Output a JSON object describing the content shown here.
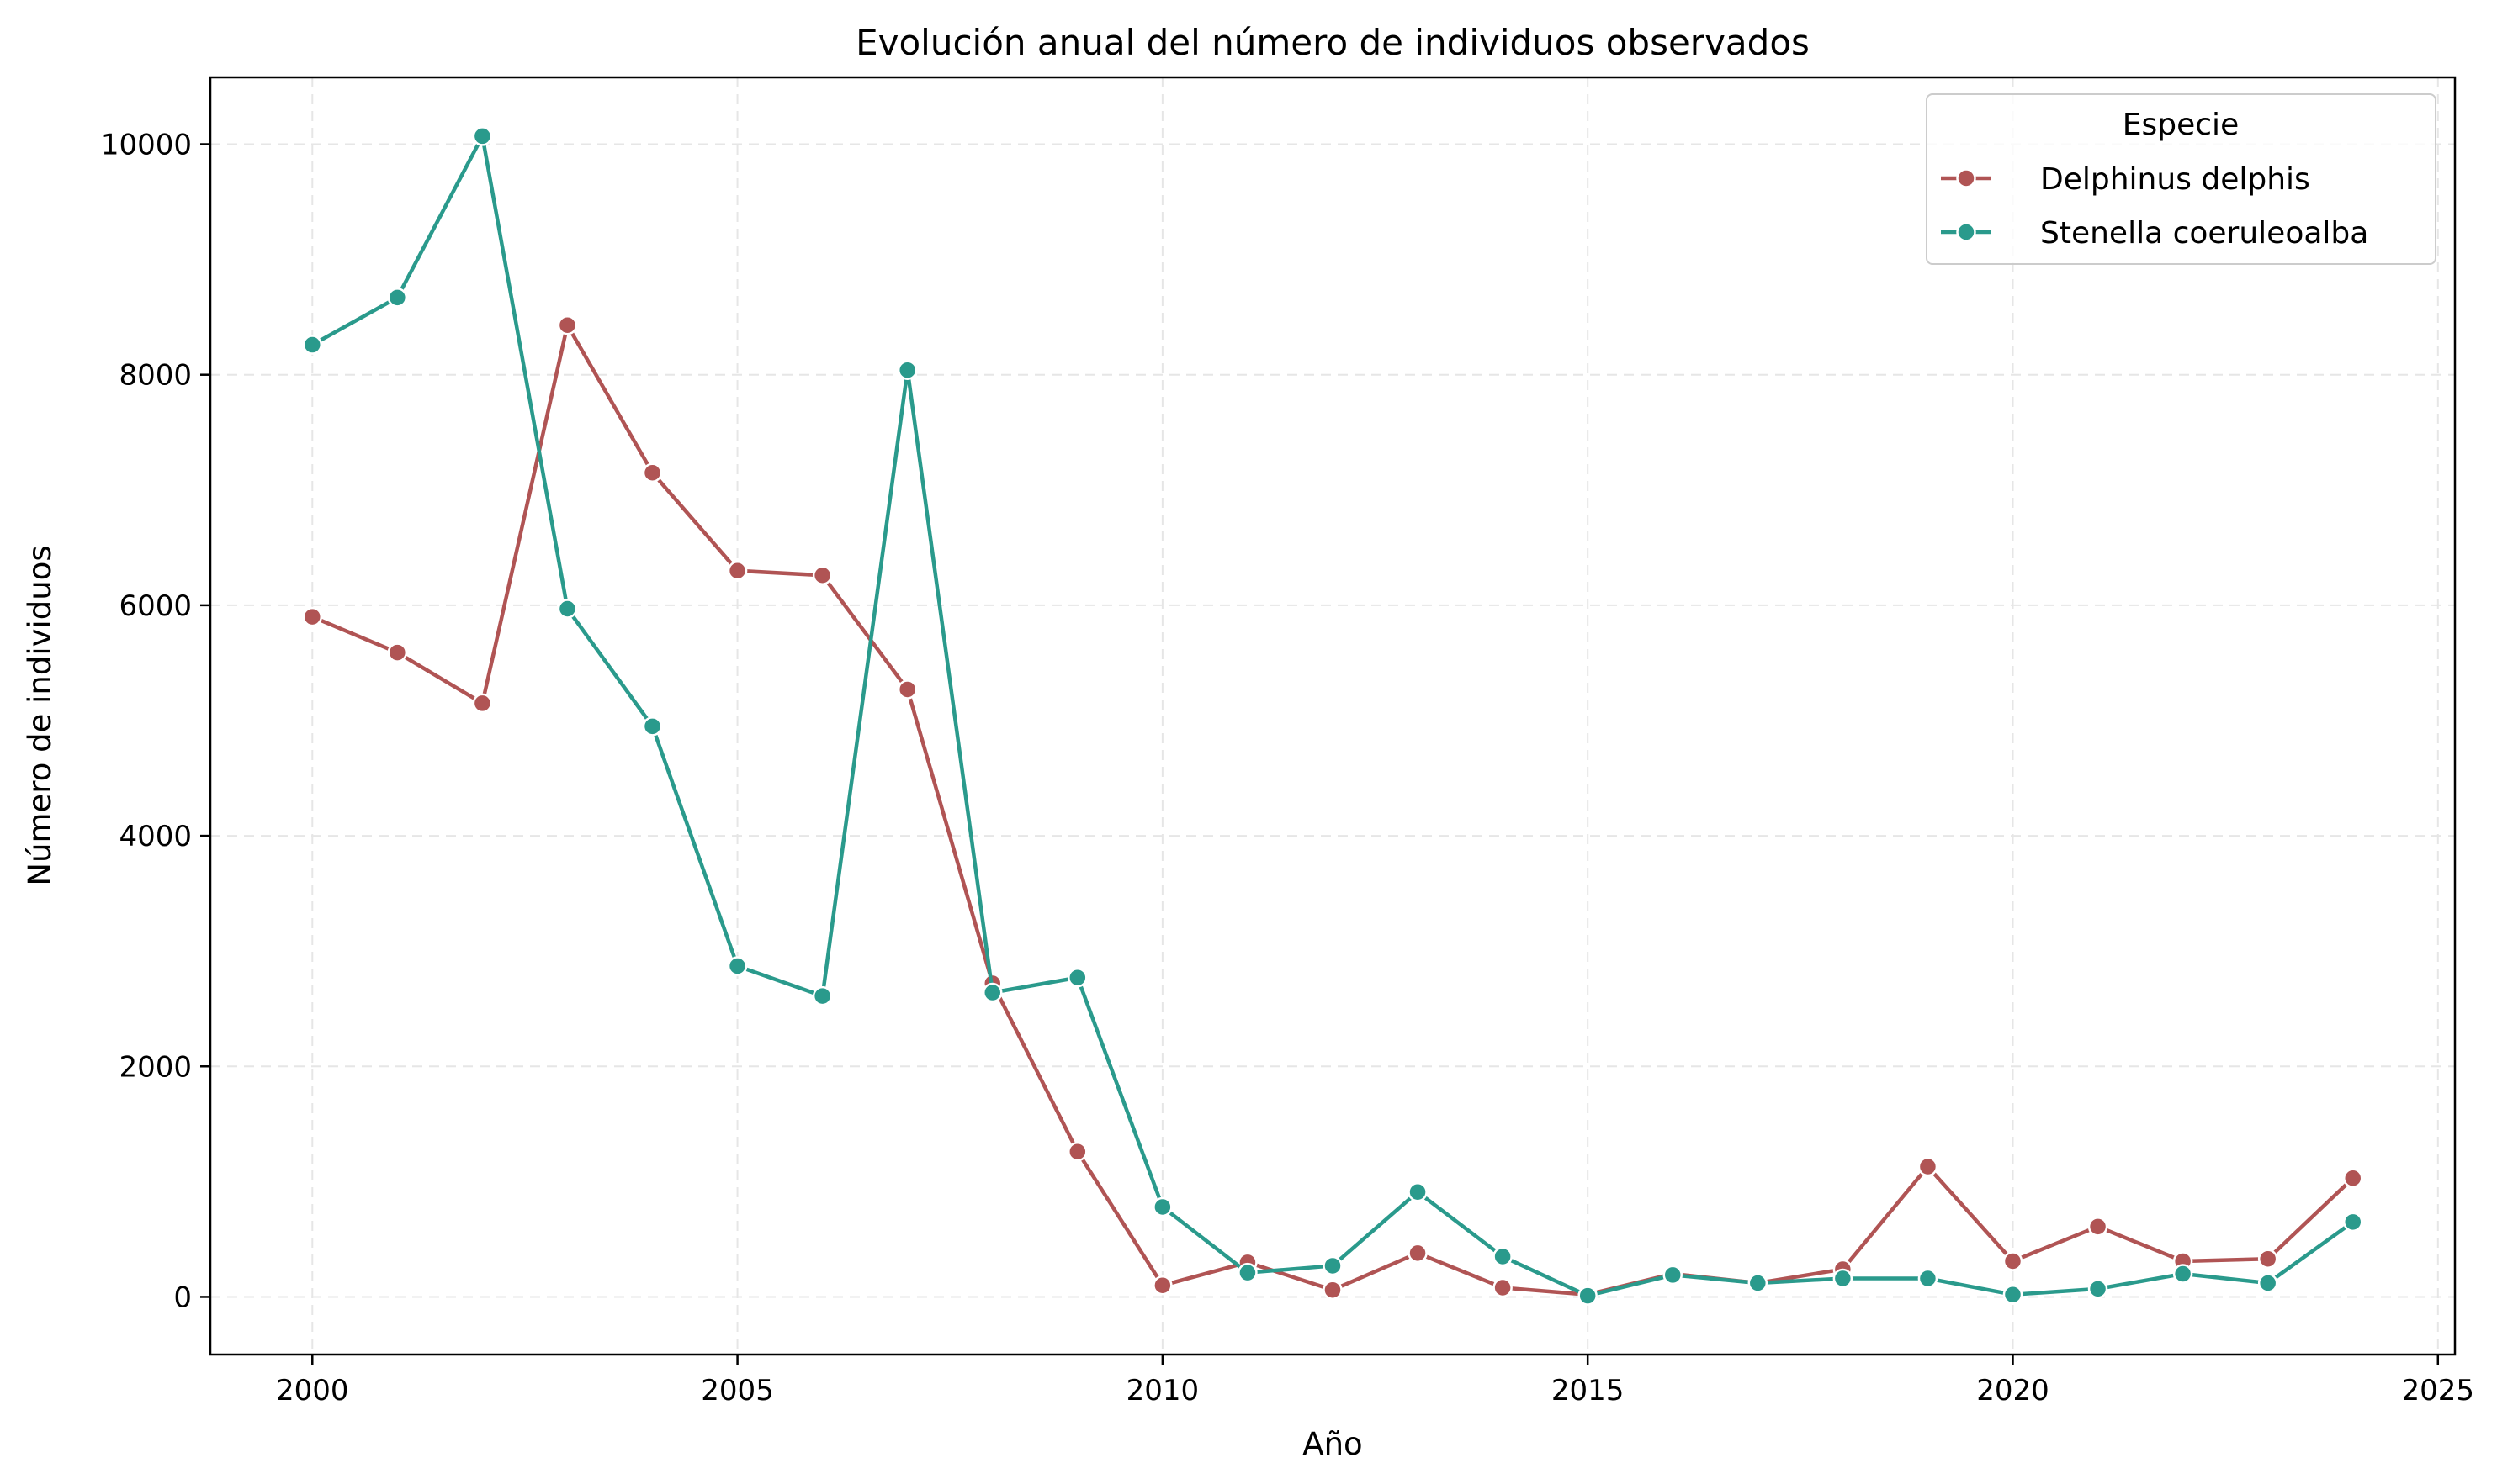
{
  "chart_data": {
    "type": "line",
    "title": "Evolución anual del número de individuos observados",
    "xlabel": "Año",
    "ylabel": "Número de individuos",
    "xlim": [
      1998.8,
      2025.2
    ],
    "ylim": [
      -500,
      10580
    ],
    "xticks": [
      2000,
      2005,
      2010,
      2015,
      2020,
      2025
    ],
    "yticks": [
      0,
      2000,
      4000,
      6000,
      8000,
      10000
    ],
    "grid": true,
    "legend": {
      "title": "Especie",
      "placement": "top-right"
    },
    "x": [
      2000,
      2001,
      2002,
      2003,
      2004,
      2005,
      2006,
      2007,
      2008,
      2009,
      2010,
      2011,
      2012,
      2013,
      2014,
      2015,
      2016,
      2017,
      2018,
      2019,
      2020,
      2021,
      2022,
      2023,
      2024
    ],
    "series": [
      {
        "name": "Delphinus delphis",
        "color": "#b05454",
        "values": [
          5900,
          5590,
          5150,
          8430,
          7150,
          6300,
          6260,
          5270,
          2720,
          1260,
          100,
          300,
          60,
          380,
          80,
          20,
          200,
          120,
          240,
          1130,
          310,
          610,
          310,
          330,
          1030
        ]
      },
      {
        "name": "Stenella coeruleoalba",
        "color": "#2a9a8c",
        "values": [
          8260,
          8670,
          10070,
          5970,
          4950,
          2870,
          2610,
          8040,
          2640,
          2770,
          780,
          210,
          270,
          910,
          350,
          10,
          190,
          120,
          160,
          160,
          20,
          70,
          200,
          120,
          650
        ]
      }
    ]
  }
}
